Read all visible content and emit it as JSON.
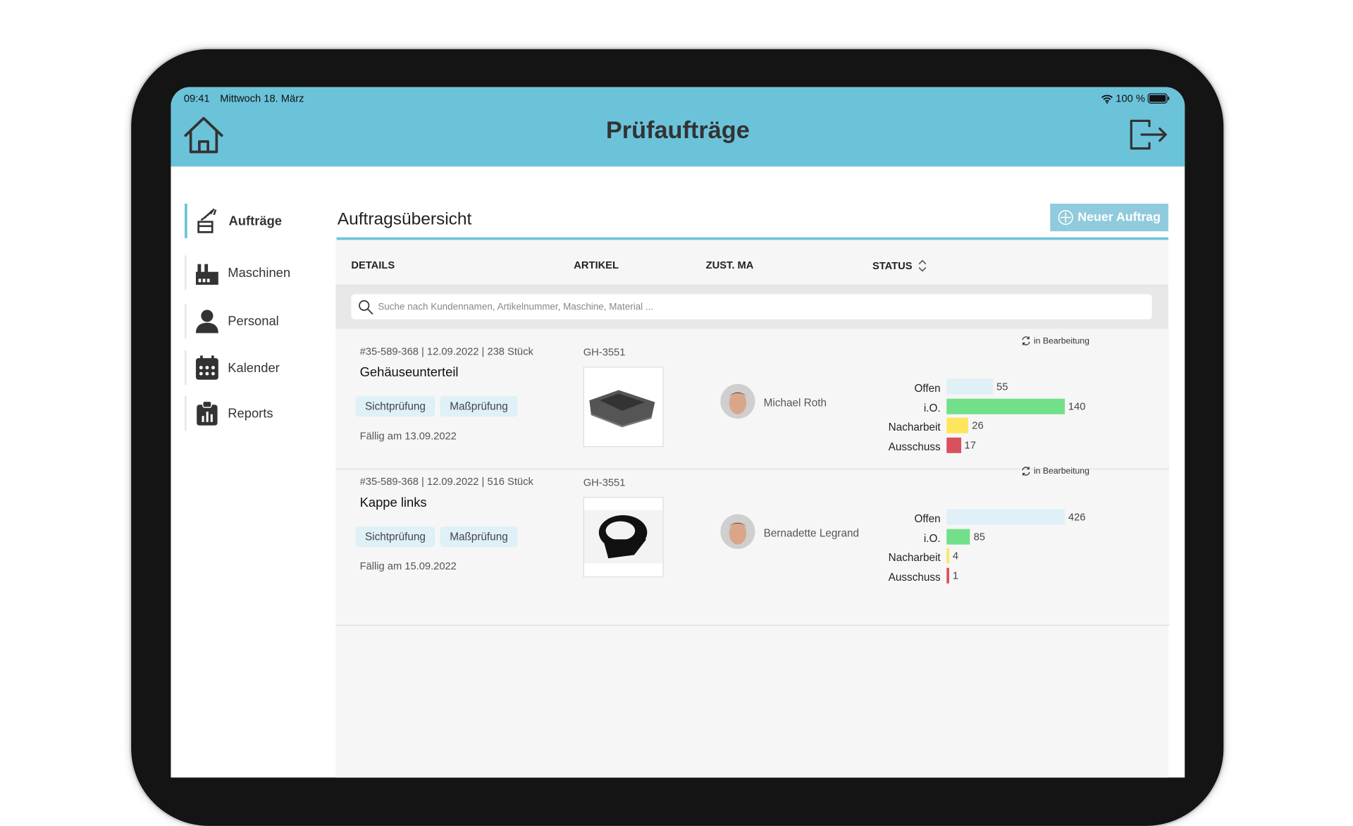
{
  "status_bar": {
    "time": "09:41",
    "date": "Mittwoch 18. März",
    "battery": "100 %"
  },
  "header": {
    "title": "Prüfaufträge",
    "home_icon": "home-icon",
    "logout_icon": "logout-icon"
  },
  "sidebar": {
    "items": [
      {
        "label": "Aufträge",
        "icon": "orders-icon",
        "active": true
      },
      {
        "label": "Maschinen",
        "icon": "factory-icon",
        "active": false
      },
      {
        "label": "Personal",
        "icon": "person-icon",
        "active": false
      },
      {
        "label": "Kalender",
        "icon": "calendar-icon",
        "active": false
      },
      {
        "label": "Reports",
        "icon": "reports-icon",
        "active": false
      }
    ]
  },
  "main": {
    "title": "Auftragsübersicht",
    "new_button": "Neuer Auftrag",
    "columns": [
      "DETAILS",
      "ARTIKEL",
      "ZUST. MA",
      "STATUS"
    ],
    "search_placeholder": "Suche nach Kundennamen, Artikelnummer, Maschine, Material ...",
    "orders": [
      {
        "meta": "#35-589-368 | 12.09.2022 | 238 Stück",
        "name": "Gehäuseunterteil",
        "tags": [
          "Sichtprüfung",
          "Maßprüfung"
        ],
        "due": "Fällig am 13.09.2022",
        "article": "GH-3551",
        "employee": "Michael Roth",
        "status": "in Bearbeitung",
        "stats": [
          {
            "label": "Offen",
            "value": 55
          },
          {
            "label": "i.O.",
            "value": 140
          },
          {
            "label": "Nacharbeit",
            "value": 26
          },
          {
            "label": "Ausschuss",
            "value": 17
          }
        ]
      },
      {
        "meta": "#35-589-368 | 12.09.2022 | 516 Stück",
        "name": "Kappe links",
        "tags": [
          "Sichtprüfung",
          "Maßprüfung"
        ],
        "due": "Fällig am 15.09.2022",
        "article": "GH-3551",
        "employee": "Bernadette Legrand",
        "status": "in Bearbeitung",
        "stats": [
          {
            "label": "Offen",
            "value": 426
          },
          {
            "label": "i.O.",
            "value": 85
          },
          {
            "label": "Nacharbeit",
            "value": 4
          },
          {
            "label": "Ausschuss",
            "value": 1
          }
        ]
      }
    ]
  },
  "colors": {
    "accent": "#6bc3da",
    "button": "#8fcbdc",
    "offen": "#dff0f7",
    "io": "#72df8a",
    "nacharbeit": "#ffe55c",
    "ausschuss": "#d9505e"
  }
}
